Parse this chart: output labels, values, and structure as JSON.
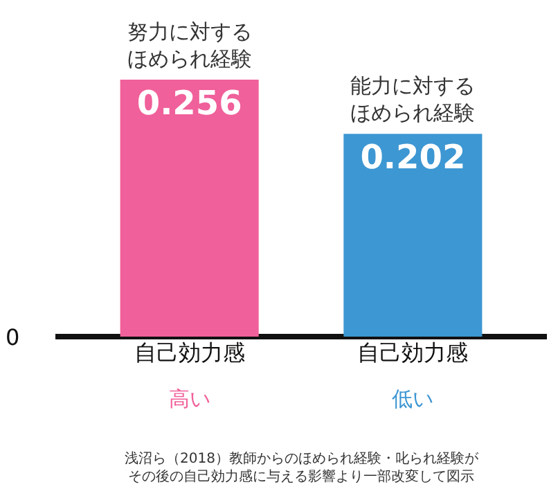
{
  "chart_data": {
    "type": "bar",
    "categories": [
      "自己効力感",
      "自己効力感"
    ],
    "values": [
      0.256,
      0.202
    ],
    "colors": [
      "#f0609a",
      "#3d97d3"
    ],
    "grid": false,
    "data_labels": true,
    "annotations": [
      {
        "text": "努力に対するほめられ経験",
        "y": 0.256
      },
      {
        "text": "能力に対するほめられ経験",
        "y": 0.202
      },
      "0",
      "高い",
      "低い",
      "浅沼ら（2018）教師からのほめられ経験・叱られ経験がその後の自己効力感に与える影響より一部改変して図示"
    ]
  }
}
